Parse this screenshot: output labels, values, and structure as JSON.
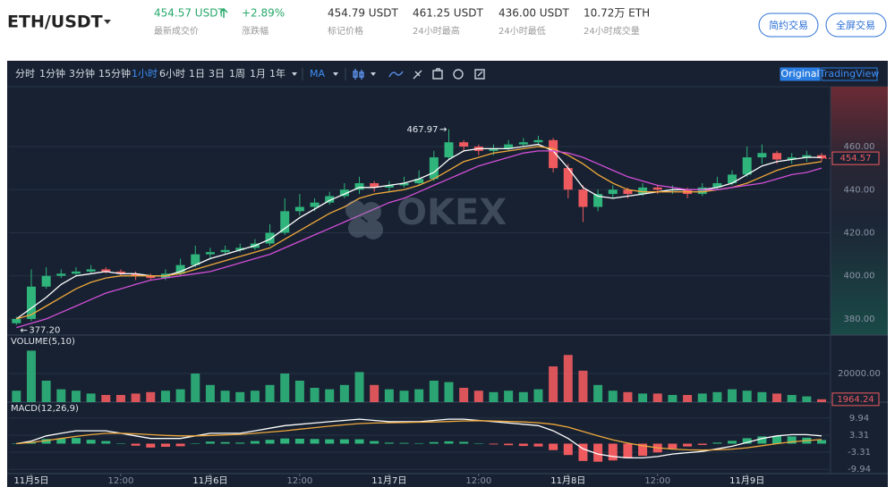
{
  "header": {
    "symbol": "ETH/USDT",
    "last_price": "454.57 USDT",
    "change": "+2.89%",
    "mark_price": "454.79 USDT",
    "high_24h": "461.25 USDT",
    "low_24h": "436.00 USDT",
    "volume_24h": "10.72万 ETH",
    "labels": [
      "最新成交价",
      "涨跌幅",
      "标记价格",
      "24小时最高",
      "24小时最低",
      "24小时成交量"
    ],
    "buttons": [
      "简约交易",
      "全屏交易"
    ]
  },
  "toolbar": {
    "intervals": [
      "分时",
      "1分钟",
      "3分钟",
      "15分钟",
      "1小时",
      "6小时",
      "1日",
      "3日",
      "1周",
      "1月",
      "1年"
    ],
    "active_index": 4,
    "indicator": "MA",
    "views": [
      "Original",
      "TradingView"
    ],
    "active_view": 0
  },
  "watermark": "OKEX",
  "chart_data": [
    {
      "type": "candlestick",
      "xlim": [
        -0.5,
        54.6
      ],
      "ylim": [
        372.5,
        487.8
      ],
      "grid": true,
      "yticks": [
        {
          "value": 380,
          "label": "380.00"
        },
        {
          "value": 400,
          "label": "400.00"
        },
        {
          "value": 420,
          "label": "420.00"
        },
        {
          "value": 440,
          "label": "440.00"
        },
        {
          "value": 460,
          "label": "460.00"
        }
      ],
      "up_color": "#2fb47c",
      "down_color": "#ef5a5f",
      "candles": {
        "open": [
          378,
          380,
          395,
          400,
          401,
          402,
          403,
          402,
          401,
          400,
          399,
          401,
          405,
          410,
          411,
          412,
          413,
          415,
          420,
          430,
          432,
          434,
          437,
          440,
          443,
          441,
          442,
          443,
          445,
          455,
          462,
          460,
          458,
          459,
          461,
          462,
          463,
          450,
          440,
          432,
          438,
          440,
          438,
          441,
          440,
          440,
          438,
          441,
          443,
          447,
          455,
          457,
          454,
          455,
          456
        ],
        "high": [
          381,
          403,
          404,
          403,
          404,
          405,
          404,
          403,
          402,
          401,
          403,
          408,
          414,
          413,
          414,
          415,
          417,
          424,
          436,
          438,
          436,
          439,
          443,
          446,
          444,
          444,
          446,
          449,
          458,
          467.97,
          463,
          461,
          461,
          463,
          464,
          465,
          464,
          452,
          442,
          440,
          442,
          441,
          443,
          442,
          442,
          441,
          443,
          446,
          449,
          460,
          461,
          458,
          457,
          458,
          457
        ],
        "low": [
          377.2,
          379,
          394,
          399,
          400,
          401,
          401,
          400,
          398,
          398,
          398,
          400,
          404,
          408,
          410,
          411,
          412,
          414,
          419,
          428,
          430,
          433,
          436,
          438,
          439,
          439,
          441,
          442,
          444,
          454,
          458,
          456,
          456,
          458,
          460,
          461,
          448,
          436,
          425,
          430,
          436,
          436,
          437,
          438,
          438,
          436,
          437,
          440,
          442,
          446,
          452,
          452,
          452,
          453,
          453
        ],
        "close": [
          380,
          395,
          400,
          401,
          402,
          403,
          402,
          401,
          400,
          399,
          401,
          405,
          410,
          411,
          412,
          413,
          415,
          420,
          430,
          432,
          434,
          437,
          440,
          443,
          441,
          442,
          443,
          445,
          455,
          462,
          460,
          458,
          459,
          461,
          462,
          463,
          450,
          440,
          432,
          438,
          440,
          438,
          441,
          440,
          440,
          438,
          441,
          443,
          447,
          455,
          457,
          454,
          455,
          456,
          454.57
        ]
      },
      "ma_lines": [
        {
          "color": "#ffffff",
          "values": [
            380,
            385,
            390,
            396,
            400,
            401,
            402,
            401,
            401,
            400,
            400,
            402,
            405,
            408,
            410,
            412,
            414,
            417,
            422,
            427,
            431,
            435,
            438,
            441,
            441,
            442,
            443,
            445,
            448,
            454,
            458,
            459,
            459,
            459,
            460,
            461,
            458,
            450,
            441,
            437,
            436,
            437,
            438,
            439,
            440,
            440,
            440,
            441,
            443,
            447,
            451,
            453,
            454,
            455,
            455
          ]
        },
        {
          "color": "#f0a83c",
          "values": [
            380,
            382,
            386,
            390,
            394,
            397,
            399,
            400,
            400,
            400,
            400,
            401,
            403,
            405,
            407,
            409,
            411,
            413,
            417,
            421,
            425,
            429,
            432,
            436,
            438,
            439,
            440,
            442,
            445,
            449,
            453,
            455,
            457,
            458,
            459,
            460,
            459,
            456,
            452,
            447,
            443,
            440,
            439,
            439,
            439,
            439,
            439,
            440,
            441,
            443,
            446,
            449,
            451,
            452,
            453
          ]
        },
        {
          "color": "#d24fd8",
          "values": [
            376,
            378,
            380,
            383,
            386,
            389,
            392,
            394,
            396,
            398,
            399,
            400,
            401,
            402,
            404,
            406,
            408,
            410,
            413,
            416,
            419,
            422,
            425,
            428,
            431,
            434,
            436,
            439,
            442,
            445,
            448,
            451,
            453,
            455,
            457,
            458,
            458,
            457,
            455,
            452,
            449,
            446,
            444,
            442,
            441,
            440,
            440,
            440,
            441,
            442,
            443,
            445,
            447,
            448,
            450
          ]
        }
      ],
      "annotations": {
        "high": 467.97,
        "low": {
          "value": 377.2,
          "label": "377.20"
        }
      }
    },
    {
      "type": "volume",
      "title": "VOLUME(5,10)",
      "xlim": [
        -0.5,
        54.6
      ],
      "ylim": [
        0,
        46900
      ],
      "grid": true,
      "yticks": [
        {
          "value": 20000,
          "label": "20000.00"
        }
      ],
      "values": [
        8000,
        36000,
        15000,
        9000,
        8000,
        6000,
        5000,
        5000,
        6000,
        7000,
        8000,
        9000,
        20000,
        12000,
        8000,
        7000,
        8000,
        12000,
        20000,
        15000,
        10000,
        9000,
        12000,
        21000,
        12000,
        9000,
        8000,
        9000,
        15000,
        14000,
        10000,
        8000,
        7000,
        8000,
        7000,
        9000,
        25000,
        33000,
        22000,
        12000,
        8000,
        7000,
        6000,
        6000,
        5000,
        5000,
        6000,
        7000,
        9000,
        8000,
        7000,
        6000,
        5000,
        4000,
        1964.24
      ]
    },
    {
      "type": "macd",
      "title": "MACD(12,26,9)",
      "xlim": [
        -0.5,
        54.6
      ],
      "ylim": [
        -11.6,
        16.1
      ],
      "grid": true,
      "yticks": [
        -9.94,
        -3.31,
        3.31,
        9.94
      ],
      "dif": {
        "color": "#ffffff",
        "values": [
          0,
          1,
          3,
          4,
          5,
          5,
          5,
          4,
          3,
          2,
          2,
          2,
          3,
          4,
          4,
          4,
          5,
          6,
          7,
          7.5,
          8,
          8.5,
          9,
          9.5,
          9,
          8.5,
          8.5,
          8.5,
          9,
          9.5,
          9.5,
          9,
          8.5,
          8,
          7.5,
          7,
          5,
          2,
          -2,
          -4,
          -5,
          -5.5,
          -5.5,
          -5,
          -4,
          -3.5,
          -3,
          -2,
          -1,
          0.5,
          2,
          3,
          3.5,
          3.5,
          3
        ]
      },
      "dea": {
        "color": "#f0a83c",
        "values": [
          0,
          0.5,
          1.2,
          2,
          2.8,
          3.5,
          4,
          4,
          3.8,
          3.5,
          3.2,
          3,
          3,
          3.2,
          3.4,
          3.6,
          4,
          4.5,
          5,
          5.6,
          6.2,
          6.8,
          7.3,
          7.8,
          8,
          8.1,
          8.2,
          8.3,
          8.4,
          8.6,
          8.8,
          8.9,
          8.8,
          8.6,
          8.4,
          8.1,
          7.5,
          6.4,
          4.7,
          3,
          1.5,
          0.2,
          -0.8,
          -1.6,
          -2.1,
          -2.4,
          -2.5,
          -2.4,
          -2.1,
          -1.6,
          -0.8,
          0,
          0.7,
          1.2,
          1.6
        ]
      },
      "histogram": [
        0,
        0.5,
        1.8,
        2,
        2.2,
        1.5,
        1,
        0,
        -0.8,
        -1.5,
        -1.2,
        -1,
        0,
        0.8,
        0.6,
        0.4,
        1,
        1.5,
        2,
        1.9,
        1.8,
        1.7,
        1.7,
        1.7,
        1,
        0.4,
        0.3,
        0.2,
        0.6,
        0.9,
        0.7,
        0.1,
        -0.3,
        -0.6,
        -0.9,
        -1.1,
        -2.5,
        -4.4,
        -6.7,
        -7,
        -6.5,
        -5.7,
        -4.7,
        -3.4,
        -1.9,
        -1.1,
        -0.5,
        0.4,
        1.1,
        2.1,
        2.8,
        3,
        2.8,
        2.3,
        1.4
      ],
      "xticks": [
        {
          "value": 1,
          "label": "11月5日"
        },
        {
          "value": 7,
          "label": "12:00"
        },
        {
          "value": 13,
          "label": "11月6日"
        },
        {
          "value": 19,
          "label": "12:00"
        },
        {
          "value": 25,
          "label": "11月7日"
        },
        {
          "value": 31,
          "label": "12:00"
        },
        {
          "value": 37,
          "label": "11月8日"
        },
        {
          "value": 43,
          "label": "12:00"
        },
        {
          "value": 49,
          "label": "11月9日"
        }
      ]
    }
  ]
}
